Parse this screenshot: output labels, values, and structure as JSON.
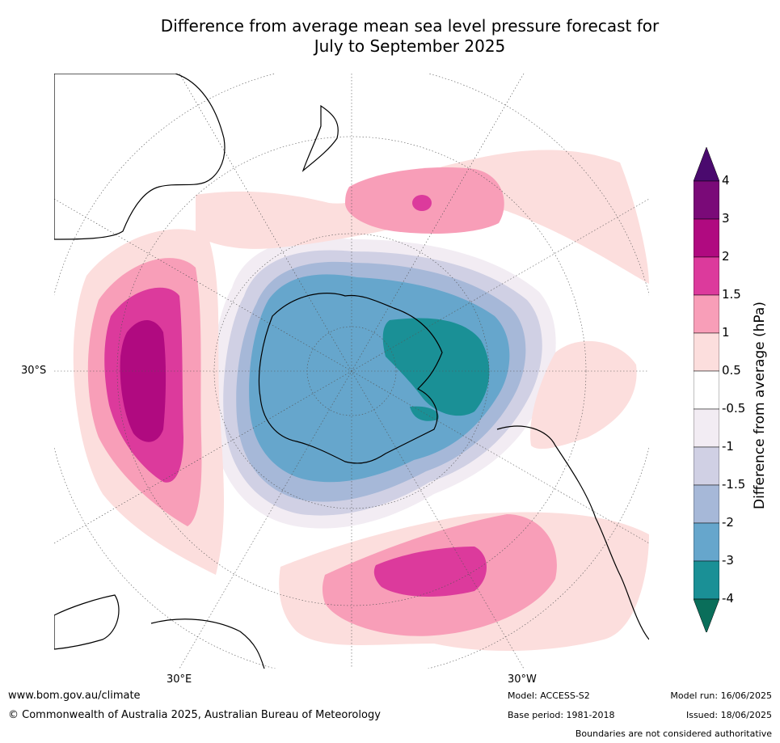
{
  "title_line1": "Difference from average mean sea level pressure forecast for",
  "title_line2": "July to September 2025",
  "lat_label": "30°S",
  "lon_left": "30°E",
  "lon_right": "30°W",
  "colorbar": {
    "title": "Difference from average (hPa)",
    "ticks": [
      "4",
      "3",
      "2",
      "1.5",
      "1",
      "0.5",
      "-0.5",
      "-1",
      "-1.5",
      "-2",
      "-3",
      "-4"
    ],
    "colors": [
      "#4a0a6e",
      "#7a0a78",
      "#b00a80",
      "#dc3a9c",
      "#f89eb8",
      "#fcdedd",
      "#ffffff",
      "#f2ecf3",
      "#d0d0e4",
      "#a6b8d8",
      "#66a6cc",
      "#1a9096",
      "#0a6e5a"
    ]
  },
  "footer": {
    "site": "www.bom.gov.au/climate",
    "copyright": "© Commonwealth of Australia 2025, Australian Bureau of Meteorology",
    "model": "Model: ACCESS-S2",
    "base": "Base period: 1981-2018",
    "run": "Model run: 16/06/2025",
    "issued": "Issued: 18/06/2025",
    "disclaimer": "Boundaries are not considered authoritative"
  }
}
